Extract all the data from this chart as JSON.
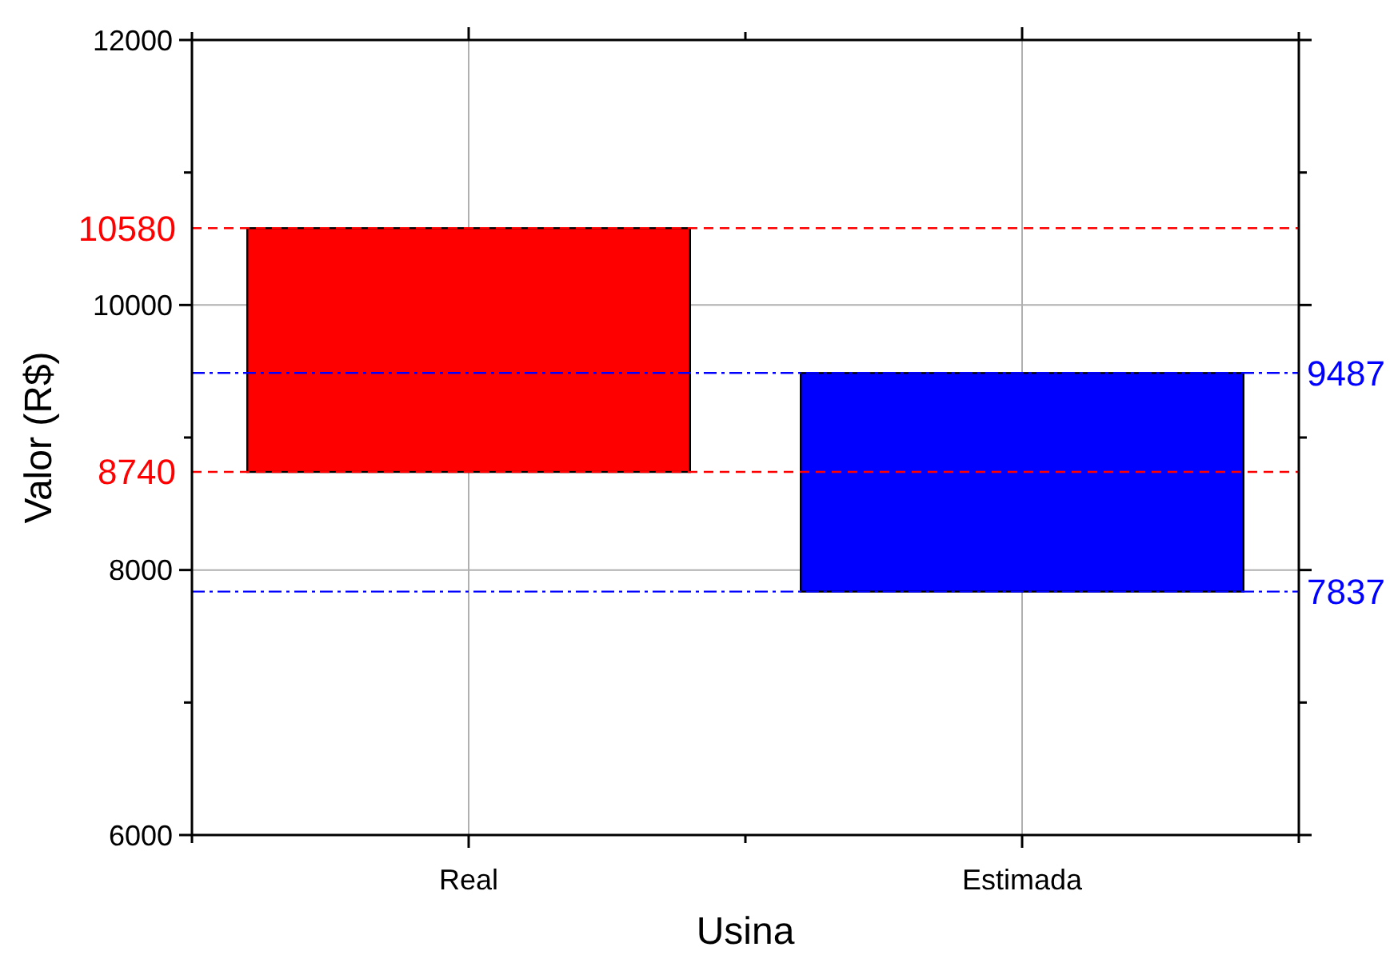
{
  "chart_data": {
    "type": "bar",
    "xlabel": "Usina",
    "ylabel": "Valor (R$)",
    "categories": [
      "Real",
      "Estimada"
    ],
    "values": [
      1840,
      1650
    ],
    "base": [
      8740,
      7837
    ],
    "colors": [
      "#ff0000",
      "#0000ff"
    ],
    "ylim": [
      6000,
      12000
    ],
    "yticks": [
      6000,
      {
        "value": 7000,
        "label": null
      },
      8000,
      {
        "value": 9000,
        "label": null
      },
      10000,
      {
        "value": 11000,
        "label": null
      },
      12000
    ],
    "grid": true,
    "ref_lines": [
      {
        "axis": "y",
        "value": 10580,
        "label": "10580",
        "color": "#ff0000",
        "line_style": "dashed"
      },
      {
        "axis": "y",
        "value": 8740,
        "label": "8740",
        "color": "#ff0000",
        "line_style": "dashed"
      },
      {
        "axis": "y",
        "value": 9487,
        "label": "9487",
        "color": "#0000ff",
        "line_style": "dashdot"
      },
      {
        "axis": "y",
        "value": 7837,
        "label": "7837",
        "color": "#0000ff",
        "line_style": "dashdot"
      }
    ]
  }
}
